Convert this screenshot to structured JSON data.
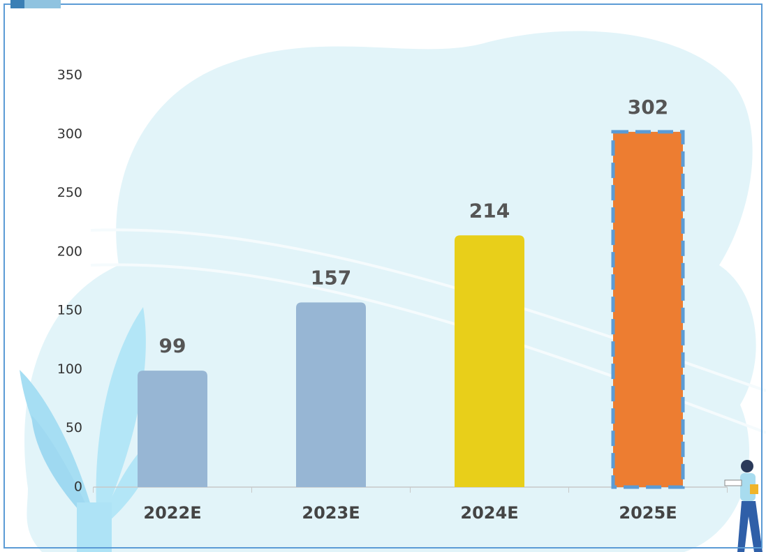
{
  "chart_data": {
    "type": "bar",
    "categories": [
      "2022E",
      "2023E",
      "2024E",
      "2025E"
    ],
    "values": [
      99,
      157,
      214,
      302
    ],
    "colors": [
      "#97b6d4",
      "#97b6d4",
      "#e8cf1a",
      "#ed7d31"
    ],
    "edge_color": "#5b9bd5",
    "edge_dashed": [
      false,
      false,
      false,
      true
    ],
    "ylim": [
      0,
      350
    ],
    "yticks": [
      0,
      50,
      100,
      150,
      200,
      250,
      300,
      350
    ],
    "grid": false
  }
}
